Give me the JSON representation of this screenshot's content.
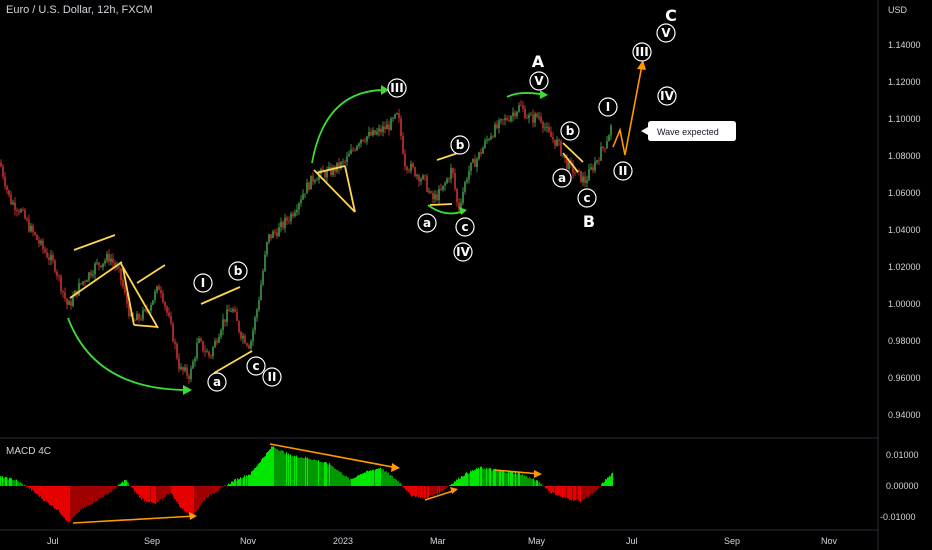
{
  "header": {
    "title": "Euro / U.S. Dollar, 12h, FXCM"
  },
  "price_axis": {
    "unit": "USD",
    "ticks": [
      "1.14000",
      "1.12000",
      "1.10000",
      "1.08000",
      "1.06000",
      "1.04000",
      "1.02000",
      "1.00000",
      "0.98000",
      "0.96000",
      "0.94000"
    ]
  },
  "macd": {
    "label": "MACD 4C",
    "ticks": [
      "0.01000",
      "0.00000",
      "-0.01000"
    ]
  },
  "time_axis": {
    "ticks": [
      "Jul",
      "Sep",
      "Nov",
      "2023",
      "Mar",
      "May",
      "Jul",
      "Sep",
      "Nov"
    ]
  },
  "colors": {
    "bull": "#26a69a",
    "candle_up": "#4caf50",
    "candle_down": "#e53935",
    "macd_up": "#00e600",
    "macd_down": "#e60000",
    "yellow": "#ffd54f",
    "orange": "#ff9800",
    "green_arrow": "#3ddc35"
  },
  "annotations": {
    "wave_expected": "Wave expected",
    "labels": {
      "A": "A",
      "B": "B",
      "C": "C",
      "I": "I",
      "II": "II",
      "III": "III",
      "IV": "IV",
      "V": "V",
      "a": "a",
      "b": "b",
      "c": "c"
    }
  },
  "chart_data": {
    "type": "candlestick",
    "symbol": "Euro / U.S. Dollar",
    "timeframe": "12h",
    "source": "FXCM",
    "ylim": [
      0.932,
      1.156
    ],
    "price_path": [
      [
        0,
        1.075
      ],
      [
        10,
        1.055
      ],
      [
        20,
        1.05
      ],
      [
        30,
        1.04
      ],
      [
        42,
        1.03
      ],
      [
        55,
        1.02
      ],
      [
        68,
        0.998
      ],
      [
        80,
        1.01
      ],
      [
        95,
        1.02
      ],
      [
        110,
        1.025
      ],
      [
        120,
        1.015
      ],
      [
        132,
        0.99
      ],
      [
        145,
        0.995
      ],
      [
        160,
        1.01
      ],
      [
        172,
        0.985
      ],
      [
        180,
        0.965
      ],
      [
        190,
        0.962
      ],
      [
        198,
        0.98
      ],
      [
        210,
        0.972
      ],
      [
        222,
        0.99
      ],
      [
        232,
        0.998
      ],
      [
        240,
        0.985
      ],
      [
        250,
        0.978
      ],
      [
        258,
        1.0
      ],
      [
        268,
        1.035
      ],
      [
        280,
        1.04
      ],
      [
        292,
        1.048
      ],
      [
        304,
        1.06
      ],
      [
        315,
        1.068
      ],
      [
        330,
        1.07
      ],
      [
        345,
        1.075
      ],
      [
        360,
        1.088
      ],
      [
        375,
        1.09
      ],
      [
        390,
        1.095
      ],
      [
        398,
        1.1
      ],
      [
        405,
        1.075
      ],
      [
        415,
        1.07
      ],
      [
        425,
        1.065
      ],
      [
        432,
        1.055
      ],
      [
        442,
        1.06
      ],
      [
        452,
        1.072
      ],
      [
        458,
        1.05
      ],
      [
        468,
        1.07
      ],
      [
        478,
        1.078
      ],
      [
        490,
        1.09
      ],
      [
        500,
        1.095
      ],
      [
        510,
        1.1
      ],
      [
        520,
        1.105
      ],
      [
        530,
        1.098
      ],
      [
        540,
        1.1
      ],
      [
        548,
        1.09
      ],
      [
        558,
        1.085
      ],
      [
        566,
        1.075
      ],
      [
        575,
        1.07
      ],
      [
        585,
        1.065
      ],
      [
        595,
        1.075
      ],
      [
        605,
        1.085
      ],
      [
        612,
        1.095
      ]
    ],
    "macd_path": [
      [
        0,
        0.003
      ],
      [
        15,
        0.002
      ],
      [
        30,
        -0.001
      ],
      [
        45,
        -0.005
      ],
      [
        58,
        -0.008
      ],
      [
        68,
        -0.012
      ],
      [
        80,
        -0.008
      ],
      [
        95,
        -0.005
      ],
      [
        110,
        -0.002
      ],
      [
        125,
        0.002
      ],
      [
        140,
        -0.004
      ],
      [
        155,
        -0.006
      ],
      [
        170,
        -0.002
      ],
      [
        180,
        -0.007
      ],
      [
        192,
        -0.01
      ],
      [
        205,
        -0.004
      ],
      [
        220,
        -0.001
      ],
      [
        235,
        0.002
      ],
      [
        250,
        0.004
      ],
      [
        262,
        0.009
      ],
      [
        272,
        0.013
      ],
      [
        290,
        0.01
      ],
      [
        310,
        0.009
      ],
      [
        330,
        0.007
      ],
      [
        350,
        0.002
      ],
      [
        360,
        0.004
      ],
      [
        380,
        0.006
      ],
      [
        400,
        0.001
      ],
      [
        410,
        -0.003
      ],
      [
        425,
        -0.004
      ],
      [
        440,
        -0.002
      ],
      [
        452,
        0.001
      ],
      [
        465,
        0.004
      ],
      [
        480,
        0.006
      ],
      [
        500,
        0.005
      ],
      [
        520,
        0.004
      ],
      [
        540,
        0.001
      ],
      [
        550,
        -0.002
      ],
      [
        565,
        -0.004
      ],
      [
        580,
        -0.005
      ],
      [
        595,
        -0.002
      ],
      [
        605,
        0.002
      ],
      [
        612,
        0.004
      ]
    ],
    "wave_expected_note": "Wave expected"
  }
}
